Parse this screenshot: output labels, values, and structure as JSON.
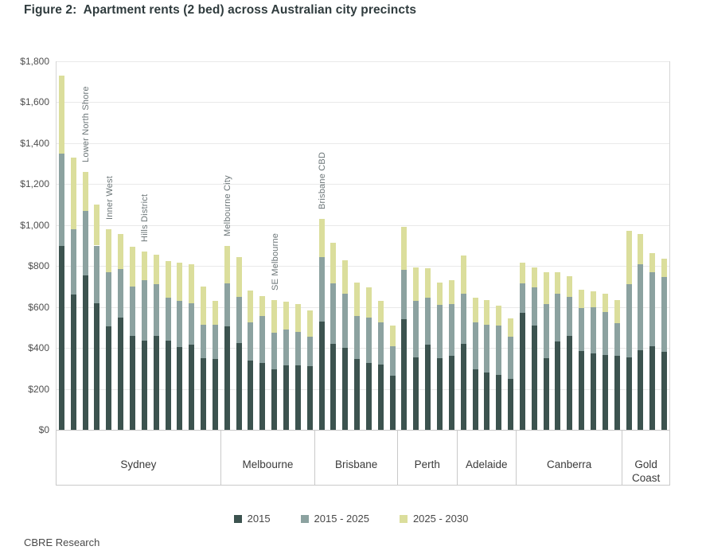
{
  "source": "CBRE Research",
  "chart_data": {
    "type": "bar",
    "stacked": true,
    "title": "Figure 2:  Apartment rents (2 bed) across Australian city precincts",
    "ylabel": "",
    "ylim": [
      0,
      1800
    ],
    "y_ticks": [
      "$0",
      "$200",
      "$400",
      "$600",
      "$800",
      "$1,000",
      "$1,200",
      "$1,400",
      "$1,600",
      "$1,800"
    ],
    "grid": true,
    "legend_position": "bottom",
    "series": [
      {
        "name": "2015",
        "color": "#3c534f"
      },
      {
        "name": "2015 - 2025",
        "color": "#8ca2a0"
      },
      {
        "name": "2025 - 2030",
        "color": "#dbde9c"
      }
    ],
    "groups": [
      {
        "city": "Sydney",
        "bars": [
          {
            "segments": [
              900,
              450,
              380
            ]
          },
          {
            "segments": [
              660,
              320,
              350
            ]
          },
          {
            "segments": [
              755,
              315,
              190
            ],
            "annotation": "Lower North Shore"
          },
          {
            "segments": [
              620,
              280,
              200
            ]
          },
          {
            "segments": [
              505,
              265,
              210
            ],
            "annotation": "Inner West"
          },
          {
            "segments": [
              550,
              235,
              170
            ]
          },
          {
            "segments": [
              460,
              240,
              195
            ]
          },
          {
            "segments": [
              435,
              295,
              140
            ],
            "annotation": "Hills District"
          },
          {
            "segments": [
              460,
              250,
              145
            ]
          },
          {
            "segments": [
              435,
              210,
              180
            ]
          },
          {
            "segments": [
              405,
              225,
              185
            ]
          },
          {
            "segments": [
              415,
              205,
              190
            ]
          },
          {
            "segments": [
              350,
              165,
              185
            ]
          },
          {
            "segments": [
              345,
              170,
              115
            ]
          }
        ]
      },
      {
        "city": "Melbourne",
        "bars": [
          {
            "segments": [
              505,
              210,
              185
            ],
            "annotation": "Melbourne City"
          },
          {
            "segments": [
              425,
              225,
              195
            ]
          },
          {
            "segments": [
              340,
              185,
              155
            ]
          },
          {
            "segments": [
              325,
              230,
              100
            ]
          },
          {
            "segments": [
              295,
              180,
              160
            ],
            "annotation": "SE Melbourne"
          },
          {
            "segments": [
              315,
              175,
              135
            ]
          },
          {
            "segments": [
              315,
              165,
              135
            ]
          },
          {
            "segments": [
              310,
              145,
              130
            ]
          }
        ]
      },
      {
        "city": "Brisbane",
        "bars": [
          {
            "segments": [
              530,
              315,
              185
            ],
            "annotation": "Brisbane CBD"
          },
          {
            "segments": [
              420,
              295,
              200
            ]
          },
          {
            "segments": [
              400,
              265,
              165
            ]
          },
          {
            "segments": [
              345,
              210,
              165
            ]
          },
          {
            "segments": [
              325,
              225,
              145
            ]
          },
          {
            "segments": [
              320,
              205,
              105
            ]
          },
          {
            "segments": [
              265,
              145,
              100
            ]
          }
        ]
      },
      {
        "city": "Perth",
        "bars": [
          {
            "segments": [
              540,
              240,
              210
            ]
          },
          {
            "segments": [
              355,
              275,
              165
            ]
          },
          {
            "segments": [
              415,
              230,
              145
            ]
          },
          {
            "segments": [
              350,
              260,
              110
            ]
          },
          {
            "segments": [
              360,
              255,
              115
            ]
          }
        ]
      },
      {
        "city": "Adelaide",
        "bars": [
          {
            "segments": [
              420,
              245,
              185
            ]
          },
          {
            "segments": [
              295,
              230,
              120
            ]
          },
          {
            "segments": [
              280,
              235,
              120
            ]
          },
          {
            "segments": [
              270,
              240,
              95
            ]
          },
          {
            "segments": [
              250,
              205,
              90
            ]
          }
        ]
      },
      {
        "city": "Canberra",
        "bars": [
          {
            "segments": [
              570,
              145,
              100
            ]
          },
          {
            "segments": [
              510,
              185,
              100
            ]
          },
          {
            "segments": [
              350,
              265,
              155
            ]
          },
          {
            "segments": [
              430,
              235,
              105
            ]
          },
          {
            "segments": [
              460,
              190,
              100
            ]
          },
          {
            "segments": [
              385,
              210,
              90
            ]
          },
          {
            "segments": [
              375,
              225,
              75
            ]
          },
          {
            "segments": [
              365,
              210,
              90
            ]
          },
          {
            "segments": [
              360,
              160,
              115
            ]
          }
        ]
      },
      {
        "city": "Gold Coast",
        "bars": [
          {
            "segments": [
              355,
              355,
              260
            ]
          },
          {
            "segments": [
              390,
              420,
              145
            ]
          },
          {
            "segments": [
              410,
              360,
              95
            ]
          },
          {
            "segments": [
              380,
              365,
              90
            ]
          }
        ]
      }
    ]
  }
}
